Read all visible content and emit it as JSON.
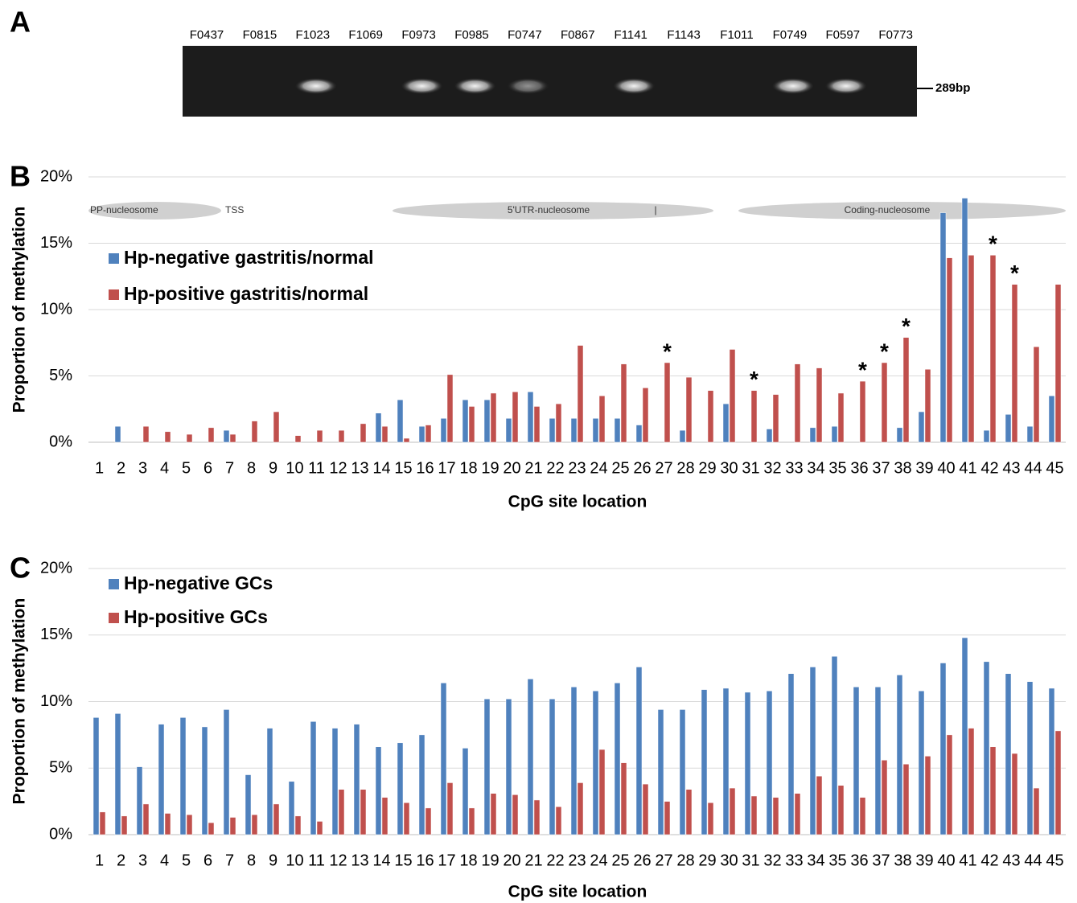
{
  "gel": {
    "panel_label": "A",
    "lanes": [
      "F0437",
      "F0815",
      "F1023",
      "F1069",
      "F0973",
      "F0985",
      "F0747",
      "F0867",
      "F1141",
      "F1143",
      "F1011",
      "F0749",
      "F0597",
      "F0773"
    ],
    "marker": "289bp"
  },
  "chart_data": [
    {
      "type": "bar",
      "panel_label": "B",
      "y_label": "Proportion of methylation",
      "x_label": "CpG site location",
      "categories": [
        "1",
        "2",
        "3",
        "4",
        "5",
        "6",
        "7",
        "8",
        "9",
        "10",
        "11",
        "12",
        "13",
        "14",
        "15",
        "16",
        "17",
        "18",
        "19",
        "20",
        "21",
        "22",
        "23",
        "24",
        "25",
        "26",
        "27",
        "28",
        "29",
        "30",
        "31",
        "32",
        "33",
        "34",
        "35",
        "36",
        "37",
        "38",
        "39",
        "40",
        "41",
        "42",
        "43",
        "44",
        "45"
      ],
      "series": [
        {
          "name": "Hp-negative gastritis/normal",
          "color": "#4f81bd",
          "values": [
            0,
            1.2,
            0,
            0,
            0,
            0,
            0.9,
            0,
            0,
            0,
            0,
            0,
            0,
            2.2,
            3.2,
            1.2,
            1.8,
            3.2,
            3.2,
            1.8,
            3.8,
            1.8,
            1.8,
            1.8,
            1.8,
            1.3,
            0,
            0.9,
            0,
            2.9,
            0,
            1.0,
            0,
            1.1,
            1.2,
            0,
            0,
            1.1,
            2.3,
            17.3,
            18.4,
            0.9,
            2.1,
            1.2,
            3.5
          ]
        },
        {
          "name": "Hp-positive gastritis/normal",
          "color": "#c0504d",
          "values": [
            0,
            0,
            1.2,
            0.8,
            0.6,
            1.1,
            0.6,
            1.6,
            2.3,
            0.5,
            0.9,
            0.9,
            1.4,
            1.2,
            0.3,
            1.3,
            5.1,
            2.7,
            3.7,
            3.8,
            2.7,
            2.9,
            7.3,
            3.5,
            5.9,
            4.1,
            6.0,
            4.9,
            3.9,
            7.0,
            3.9,
            3.6,
            5.9,
            5.6,
            3.7,
            4.6,
            6.0,
            7.9,
            5.5,
            13.9,
            14.1,
            14.1,
            11.9,
            7.2,
            11.9
          ]
        }
      ],
      "ylim": [
        0,
        20
      ],
      "yticks": [
        {
          "value": 0,
          "label": "0%"
        },
        {
          "value": 5,
          "label": "5%"
        },
        {
          "value": 10,
          "label": "10%"
        },
        {
          "value": 15,
          "label": "15%"
        },
        {
          "value": 20,
          "label": "20%"
        }
      ],
      "grid": true,
      "annotations": [
        {
          "text": "*",
          "x": "27"
        },
        {
          "text": "*",
          "x": "31"
        },
        {
          "text": "*",
          "x": "36"
        },
        {
          "text": "*",
          "x": "37"
        },
        {
          "text": "*",
          "x": "38"
        },
        {
          "text": "*",
          "x": "42"
        },
        {
          "text": "*",
          "x": "43"
        }
      ],
      "regions": [
        "PP-nucleosome",
        "TSS",
        "5'UTR-nucleosome",
        "|",
        "Coding-nucleosome"
      ]
    },
    {
      "type": "bar",
      "panel_label": "C",
      "y_label": "Proportion of methylation",
      "x_label": "CpG site location",
      "categories": [
        "1",
        "2",
        "3",
        "4",
        "5",
        "6",
        "7",
        "8",
        "9",
        "10",
        "11",
        "12",
        "13",
        "14",
        "15",
        "16",
        "17",
        "18",
        "19",
        "20",
        "21",
        "22",
        "23",
        "24",
        "25",
        "26",
        "27",
        "28",
        "29",
        "30",
        "31",
        "32",
        "33",
        "34",
        "35",
        "36",
        "37",
        "38",
        "39",
        "40",
        "41",
        "42",
        "43",
        "44",
        "45"
      ],
      "series": [
        {
          "name": "Hp-negative GCs",
          "color": "#4f81bd",
          "values": [
            8.8,
            9.1,
            5.1,
            8.3,
            8.8,
            8.1,
            9.4,
            4.5,
            8.0,
            4.0,
            8.5,
            8.0,
            8.3,
            6.6,
            6.9,
            7.5,
            11.4,
            6.5,
            10.2,
            10.2,
            11.7,
            10.2,
            11.1,
            10.8,
            11.4,
            12.6,
            9.4,
            9.4,
            10.9,
            11.0,
            10.7,
            10.8,
            12.1,
            12.6,
            13.4,
            11.1,
            11.1,
            12.0,
            10.8,
            12.9,
            14.8,
            13.0,
            12.1,
            11.5,
            11.0
          ]
        },
        {
          "name": "Hp-positive GCs",
          "color": "#c0504d",
          "values": [
            1.7,
            1.4,
            2.3,
            1.6,
            1.5,
            0.9,
            1.3,
            1.5,
            2.3,
            1.4,
            1.0,
            3.4,
            3.4,
            2.8,
            2.4,
            2.0,
            3.9,
            2.0,
            3.1,
            3.0,
            2.6,
            2.1,
            3.9,
            6.4,
            5.4,
            3.8,
            2.5,
            3.4,
            2.4,
            3.5,
            2.9,
            2.8,
            3.1,
            4.4,
            3.7,
            2.8,
            5.6,
            5.3,
            5.9,
            7.5,
            8.0,
            6.6,
            6.1,
            3.5,
            7.8
          ]
        }
      ],
      "ylim": [
        0,
        20
      ],
      "yticks": [
        {
          "value": 0,
          "label": "0%"
        },
        {
          "value": 5,
          "label": "5%"
        },
        {
          "value": 10,
          "label": "10%"
        },
        {
          "value": 15,
          "label": "15%"
        },
        {
          "value": 20,
          "label": "20%"
        }
      ],
      "grid": true
    }
  ]
}
